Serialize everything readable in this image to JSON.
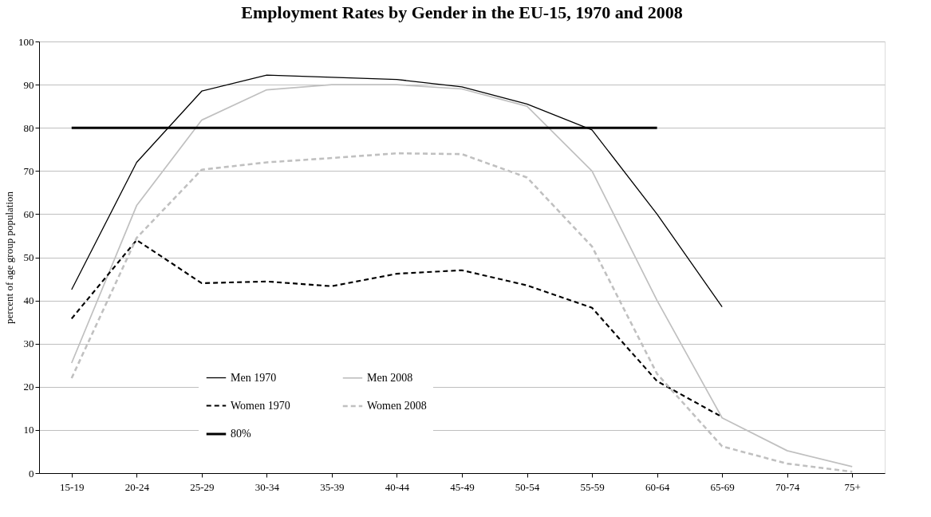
{
  "chart_data": {
    "type": "line",
    "title": "Employment Rates by Gender in the EU-15, 1970 and 2008",
    "ylabel": "percent of age group population",
    "categories": [
      "15-19",
      "20-24",
      "25-29",
      "30-34",
      "35-39",
      "40-44",
      "45-49",
      "50-54",
      "55-59",
      "60-64",
      "65-69",
      "70-74",
      "75+"
    ],
    "ylim": [
      0,
      100
    ],
    "yticks": [
      0,
      10,
      20,
      30,
      40,
      50,
      60,
      70,
      80,
      90,
      100
    ],
    "grid": "y",
    "legend": "bottom left",
    "marker": "none",
    "series": [
      {
        "name": "Men 1970",
        "color": "#000000",
        "line_style": "solid",
        "values": [
          42.5,
          72,
          88.5,
          92.2,
          91.7,
          91.2,
          89.5,
          85.5,
          79.5,
          60,
          38.5,
          null,
          null
        ]
      },
      {
        "name": "Men 2008",
        "color": "#c0c0c0",
        "line_style": "solid",
        "values": [
          25.5,
          62,
          81.8,
          88.8,
          90,
          90,
          89,
          85,
          70,
          40,
          12.8,
          5.2,
          1.5
        ]
      },
      {
        "name": "Women 1970",
        "color": "#000000",
        "line_style": "dashed",
        "values": [
          35.8,
          54,
          44,
          44.4,
          43.3,
          46.2,
          47,
          43.5,
          38.3,
          21.3,
          13,
          null,
          null
        ]
      },
      {
        "name": "Women 2008",
        "color": "#c0c0c0",
        "line_style": "dashed",
        "values": [
          22,
          54.5,
          70.3,
          72,
          73,
          74.1,
          73.9,
          68.5,
          52.5,
          23,
          6.2,
          2.2,
          0.3
        ]
      },
      {
        "name": "80%",
        "color": "#000000",
        "line_style": "solid",
        "values": [
          80,
          80,
          80,
          80,
          80,
          80,
          80,
          80,
          80,
          80,
          null,
          null,
          null
        ]
      }
    ]
  }
}
